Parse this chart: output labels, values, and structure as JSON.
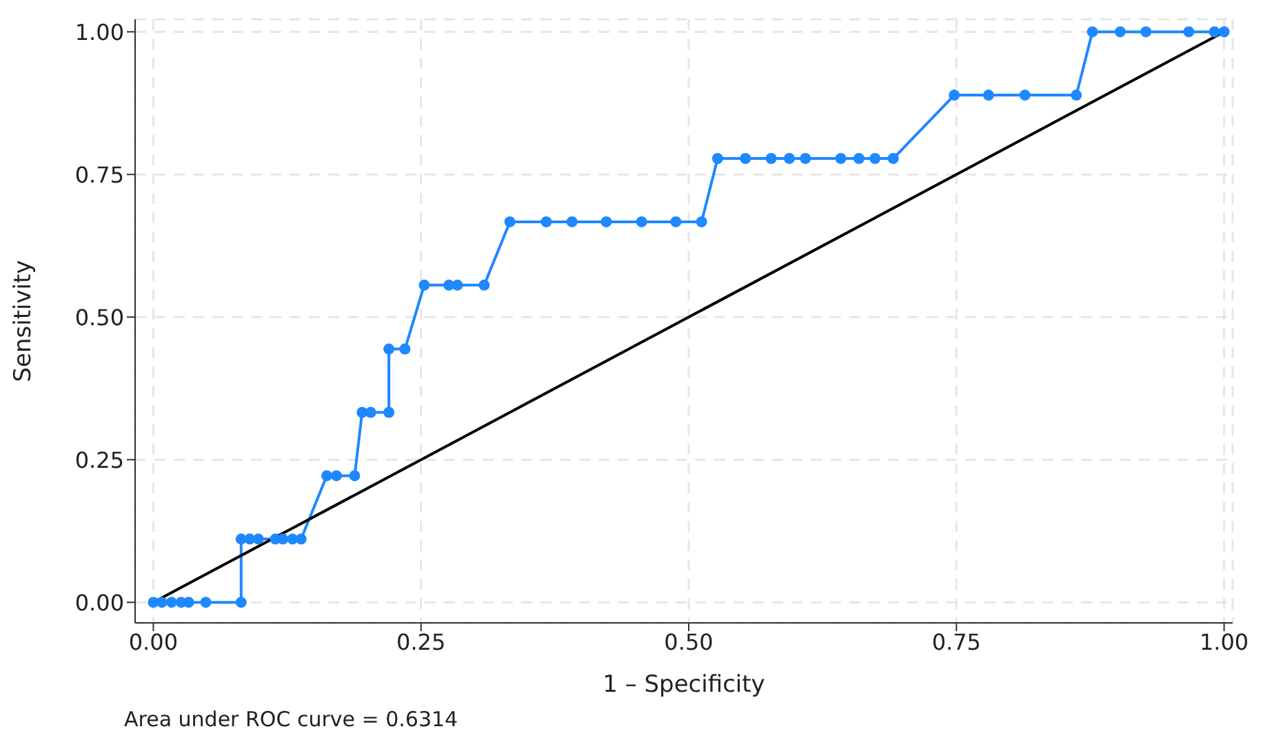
{
  "chart_data": {
    "type": "line",
    "xlabel": "1 – Specificity",
    "ylabel": "Sensitivity",
    "annotations": [
      "Area under ROC curve = 0.6314"
    ],
    "xlim": [
      -0.017,
      1.008
    ],
    "ylim": [
      -0.036,
      1.022
    ],
    "xticks": [
      {
        "value": 0,
        "label": "0.00"
      },
      {
        "value": 0.25,
        "label": "0.25"
      },
      {
        "value": 0.5,
        "label": "0.50"
      },
      {
        "value": 0.75,
        "label": "0.75"
      },
      {
        "value": 1,
        "label": "1.00"
      }
    ],
    "yticks": [
      {
        "value": 0,
        "label": "0.00"
      },
      {
        "value": 0.25,
        "label": "0.25"
      },
      {
        "value": 0.5,
        "label": "0.50"
      },
      {
        "value": 0.75,
        "label": "0.75"
      },
      {
        "value": 1,
        "label": "1.00"
      }
    ],
    "grid": true,
    "marker": "circle",
    "line_style": "solid",
    "series": [
      {
        "color": "#1e88ff",
        "x": [
          0,
          0.008,
          0.017,
          0.026,
          0.033,
          0.049,
          0.082,
          0.082,
          0.09,
          0.098,
          0.114,
          0.121,
          0.13,
          0.138,
          0.162,
          0.171,
          0.188,
          0.195,
          0.203,
          0.22,
          0.22,
          0.235,
          0.253,
          0.276,
          0.284,
          0.309,
          0.333,
          0.367,
          0.391,
          0.423,
          0.456,
          0.488,
          0.512,
          0.527,
          0.553,
          0.577,
          0.594,
          0.609,
          0.642,
          0.659,
          0.674,
          0.691,
          0.748,
          0.78,
          0.814,
          0.862,
          0.877,
          0.903,
          0.927,
          0.967,
          0.991,
          1.0
        ],
        "values": [
          0,
          0,
          0,
          0,
          0,
          0,
          0,
          0.111,
          0.111,
          0.111,
          0.111,
          0.111,
          0.111,
          0.111,
          0.222,
          0.222,
          0.222,
          0.333,
          0.333,
          0.333,
          0.444,
          0.444,
          0.556,
          0.556,
          0.556,
          0.556,
          0.667,
          0.667,
          0.667,
          0.667,
          0.667,
          0.667,
          0.667,
          0.778,
          0.778,
          0.778,
          0.778,
          0.778,
          0.778,
          0.778,
          0.778,
          0.778,
          0.889,
          0.889,
          0.889,
          0.889,
          1,
          1,
          1,
          1,
          1,
          1
        ]
      },
      {
        "color": "#000000",
        "x": [
          0,
          1
        ],
        "values": [
          0,
          1
        ],
        "marker": "none"
      }
    ]
  }
}
